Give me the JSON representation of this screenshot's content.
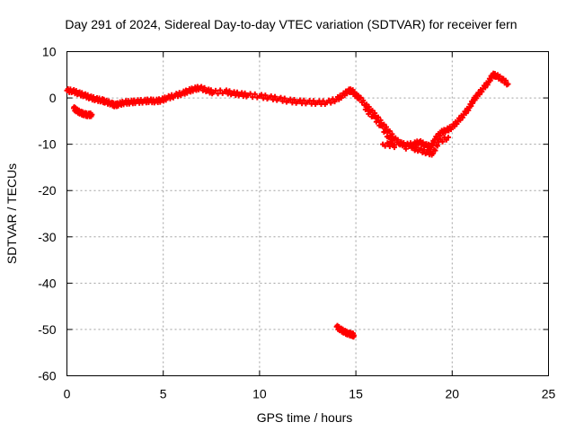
{
  "chart_data": {
    "type": "scatter",
    "title": "Day 291 of 2024, Sidereal Day-to-day VTEC variation (SDTVAR) for receiver fern",
    "xlabel": "GPS time / hours",
    "ylabel": "SDTVAR / TECUs",
    "xlim": [
      0,
      25
    ],
    "ylim": [
      -60,
      10
    ],
    "xticks": [
      0,
      5,
      10,
      15,
      20,
      25
    ],
    "yticks": [
      10,
      0,
      -10,
      -20,
      -30,
      -40,
      -50,
      -60
    ],
    "grid": true,
    "marker": "+",
    "color": "#ff0000",
    "series": [
      {
        "name": "main-track",
        "points": [
          [
            0.0,
            1.6
          ],
          [
            0.3,
            1.5
          ],
          [
            0.6,
            1.0
          ],
          [
            0.9,
            0.6
          ],
          [
            1.2,
            0.1
          ],
          [
            1.5,
            -0.3
          ],
          [
            1.8,
            -0.5
          ],
          [
            2.0,
            -0.8
          ],
          [
            2.3,
            -1.2
          ],
          [
            2.5,
            -1.6
          ],
          [
            2.7,
            -1.3
          ],
          [
            3.0,
            -1.0
          ],
          [
            3.3,
            -0.9
          ],
          [
            3.6,
            -0.8
          ],
          [
            4.0,
            -0.7
          ],
          [
            4.3,
            -0.6
          ],
          [
            4.6,
            -0.7
          ],
          [
            4.9,
            -0.5
          ],
          [
            5.2,
            0.0
          ],
          [
            5.6,
            0.5
          ],
          [
            6.0,
            1.0
          ],
          [
            6.3,
            1.5
          ],
          [
            6.6,
            1.9
          ],
          [
            6.9,
            2.2
          ],
          [
            7.3,
            1.6
          ],
          [
            7.6,
            1.2
          ],
          [
            8.2,
            1.4
          ],
          [
            8.6,
            1.0
          ],
          [
            9.0,
            0.8
          ],
          [
            9.4,
            0.6
          ],
          [
            10.0,
            0.4
          ],
          [
            10.5,
            0.1
          ],
          [
            11.0,
            -0.2
          ],
          [
            11.5,
            -0.6
          ],
          [
            12.0,
            -0.8
          ],
          [
            12.5,
            -0.9
          ],
          [
            13.0,
            -1.0
          ],
          [
            13.5,
            -1.0
          ],
          [
            14.0,
            -0.3
          ],
          [
            14.3,
            0.5
          ],
          [
            14.6,
            1.5
          ],
          [
            14.8,
            1.6
          ],
          [
            15.0,
            0.5
          ],
          [
            15.2,
            0.0
          ],
          [
            15.5,
            -1.5
          ],
          [
            15.8,
            -2.8
          ],
          [
            16.1,
            -4.2
          ],
          [
            16.4,
            -5.8
          ],
          [
            16.7,
            -7.2
          ],
          [
            17.0,
            -8.8
          ],
          [
            17.3,
            -9.8
          ],
          [
            17.6,
            -10.2
          ],
          [
            18.0,
            -10.0
          ],
          [
            18.3,
            -9.5
          ],
          [
            18.6,
            -10.2
          ],
          [
            18.9,
            -10.5
          ],
          [
            19.1,
            -9.0
          ],
          [
            19.4,
            -7.5
          ],
          [
            19.7,
            -7.0
          ],
          [
            20.0,
            -6.3
          ],
          [
            20.3,
            -5.0
          ],
          [
            20.6,
            -3.6
          ],
          [
            20.9,
            -2.0
          ],
          [
            21.1,
            -0.5
          ],
          [
            21.3,
            0.5
          ],
          [
            21.6,
            2.0
          ],
          [
            21.9,
            3.5
          ],
          [
            22.1,
            5.0
          ],
          [
            22.3,
            4.8
          ],
          [
            22.6,
            4.0
          ],
          [
            22.9,
            3.0
          ]
        ]
      },
      {
        "name": "early-branch",
        "points": [
          [
            0.35,
            -2.2
          ],
          [
            0.5,
            -2.7
          ],
          [
            0.7,
            -3.2
          ],
          [
            0.9,
            -3.5
          ],
          [
            1.1,
            -3.7
          ],
          [
            1.3,
            -3.6
          ]
        ]
      },
      {
        "name": "lower-branch",
        "points": [
          [
            15.5,
            -2.5
          ],
          [
            15.9,
            -4.0
          ],
          [
            16.3,
            -6.0
          ],
          [
            16.7,
            -8.5
          ],
          [
            17.0,
            -10.2
          ],
          [
            16.4,
            -10.0
          ],
          [
            17.9,
            -10.8
          ],
          [
            18.3,
            -11.2
          ],
          [
            18.7,
            -11.8
          ],
          [
            19.0,
            -12.0
          ],
          [
            19.3,
            -9.5
          ],
          [
            19.8,
            -8.5
          ]
        ]
      },
      {
        "name": "outlier-segment",
        "points": [
          [
            14.0,
            -49.4
          ],
          [
            14.2,
            -50.0
          ],
          [
            14.4,
            -50.5
          ],
          [
            14.6,
            -50.9
          ],
          [
            14.8,
            -51.1
          ],
          [
            14.9,
            -51.3
          ]
        ]
      }
    ]
  }
}
